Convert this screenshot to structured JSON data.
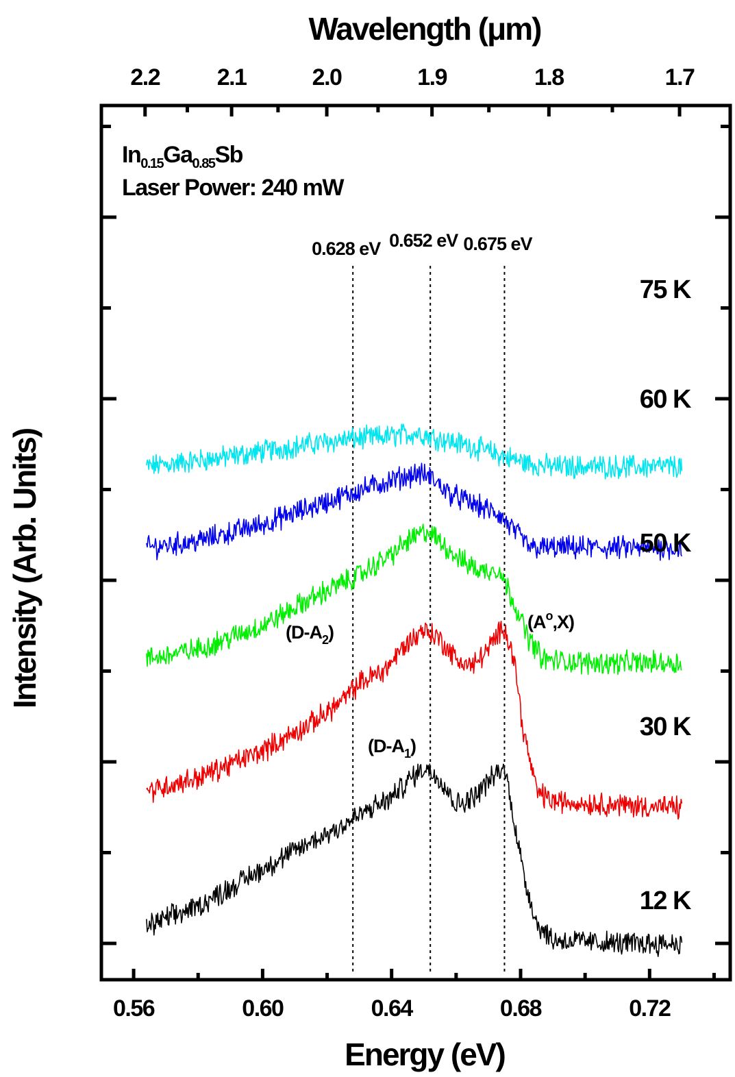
{
  "chart_data": {
    "type": "line",
    "title": "",
    "xlabel": "Energy (eV)",
    "ylabel": "Intensity (Arb. Units)",
    "top_axis_label": "Wavelength (μm)",
    "xlim": [
      0.55,
      0.745
    ],
    "ylim": [
      0,
      10
    ],
    "x_ticks": [
      "0.56",
      "0.60",
      "0.64",
      "0.68",
      "0.72"
    ],
    "top_ticks": [
      "2.2",
      "2.1",
      "2.0",
      "1.9",
      "1.8",
      "1.7"
    ],
    "y_tick_labels_shown": false,
    "sample_line1_main": "In",
    "sample_line1_sub1": "0.15",
    "sample_line1_mid": "Ga",
    "sample_line1_sub2": "0.85",
    "sample_line1_end": "Sb",
    "sample_line2": "Laser Power: 240 mW",
    "reference_lines": [
      {
        "x": 0.628,
        "label": "0.628 eV"
      },
      {
        "x": 0.652,
        "label": "0.652 eV"
      },
      {
        "x": 0.675,
        "label": "0.675 eV"
      }
    ],
    "peak_labels": {
      "da2_main": "(D-A",
      "da2_sub": "2",
      "da1_main": "(D-A",
      "da1_sub": "1",
      "ax_main": "(A",
      "ax_sup": "o",
      "ax_end": ",X)"
    },
    "series": [
      {
        "name": "75 K",
        "color": "#00e5ee",
        "x": [
          0.564,
          0.59,
          0.61,
          0.625,
          0.64,
          0.648,
          0.656,
          0.665,
          0.675,
          0.682,
          0.69,
          0.71,
          0.73
        ],
        "y": [
          7.05,
          7.2,
          7.35,
          7.45,
          7.5,
          7.55,
          7.45,
          7.35,
          7.2,
          7.1,
          7.05,
          7.05,
          7.05
        ]
      },
      {
        "name": "60 K",
        "color": "#0000ee",
        "x": [
          0.564,
          0.58,
          0.6,
          0.615,
          0.63,
          0.64,
          0.648,
          0.652,
          0.658,
          0.665,
          0.673,
          0.678,
          0.683,
          0.69,
          0.71,
          0.73
        ],
        "y": [
          5.85,
          5.95,
          6.2,
          6.45,
          6.7,
          6.85,
          6.95,
          6.9,
          6.65,
          6.5,
          6.35,
          6.1,
          5.85,
          5.85,
          5.85,
          5.85
        ]
      },
      {
        "name": "50 K",
        "color": "#00ee00",
        "x": [
          0.564,
          0.58,
          0.6,
          0.615,
          0.63,
          0.64,
          0.645,
          0.651,
          0.656,
          0.662,
          0.668,
          0.673,
          0.678,
          0.682,
          0.687,
          0.7,
          0.73
        ],
        "y": [
          4.2,
          4.35,
          4.7,
          5.1,
          5.45,
          5.75,
          5.95,
          6.1,
          5.9,
          5.65,
          5.5,
          5.55,
          5.05,
          4.55,
          4.2,
          4.15,
          4.15
        ]
      },
      {
        "name": "30 K",
        "color": "#ee0000",
        "x": [
          0.564,
          0.58,
          0.6,
          0.615,
          0.625,
          0.63,
          0.638,
          0.644,
          0.65,
          0.655,
          0.66,
          0.665,
          0.67,
          0.675,
          0.678,
          0.681,
          0.685,
          0.69,
          0.71,
          0.73
        ],
        "y": [
          2.25,
          2.45,
          2.85,
          3.25,
          3.6,
          3.85,
          4.05,
          4.4,
          4.65,
          4.5,
          4.2,
          4.1,
          4.35,
          4.7,
          4.2,
          3.1,
          2.25,
          2.1,
          2.05,
          2.0
        ]
      },
      {
        "name": "12 K",
        "color": "#000000",
        "x": [
          0.564,
          0.58,
          0.6,
          0.615,
          0.625,
          0.632,
          0.64,
          0.645,
          0.65,
          0.655,
          0.66,
          0.665,
          0.67,
          0.675,
          0.677,
          0.681,
          0.685,
          0.69,
          0.71,
          0.73
        ],
        "y": [
          0.25,
          0.55,
          1.1,
          1.5,
          1.75,
          1.95,
          2.15,
          2.4,
          2.6,
          2.45,
          2.05,
          2.15,
          2.4,
          2.6,
          2.1,
          1.0,
          0.3,
          0.05,
          0.0,
          0.0
        ]
      }
    ]
  }
}
